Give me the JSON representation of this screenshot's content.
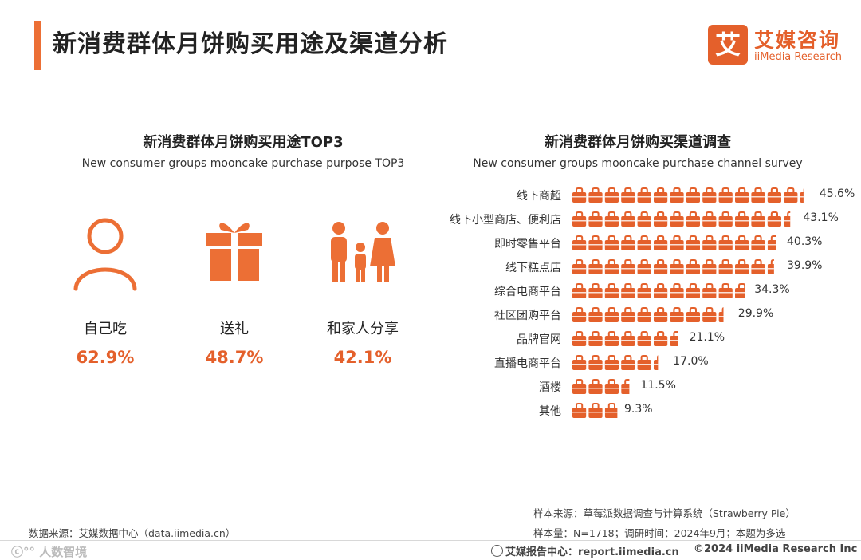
{
  "page": {
    "title": "新消费群体月饼购买用途及渠道分析",
    "accent_color": "#e4602b"
  },
  "logo": {
    "mark": "艾",
    "cn": "艾媒咨询",
    "en": "iiMedia Research"
  },
  "left_section": {
    "title_cn": "新消费群体月饼购买用途TOP3",
    "title_en": "New consumer groups mooncake purchase purpose TOP3",
    "items": [
      {
        "label": "自己吃",
        "value": "62.9%",
        "icon": "person-icon"
      },
      {
        "label": "送礼",
        "value": "48.7%",
        "icon": "gift-icon"
      },
      {
        "label": "和家人分享",
        "value": "42.1%",
        "icon": "family-icon"
      }
    ]
  },
  "right_section": {
    "title_cn": "新消费群体月饼购买渠道调查",
    "title_en": "New consumer groups mooncake purchase channel survey"
  },
  "chart_data": {
    "type": "bar",
    "orientation": "horizontal",
    "mark": "shopping-bag-icons",
    "title": "新消费群体月饼购买渠道调查",
    "subtitle": "New consumer groups mooncake purchase channel survey",
    "unit": "%",
    "categories": [
      "线下商超",
      "线下小型商店、便利店",
      "即时零售平台",
      "线下糕点店",
      "综合电商平台",
      "社区团购平台",
      "品牌官网",
      "直播电商平台",
      "酒楼",
      "其他"
    ],
    "values": [
      45.6,
      43.1,
      40.3,
      39.9,
      34.3,
      29.9,
      21.1,
      17.0,
      11.5,
      9.3
    ],
    "value_labels": [
      "45.6%",
      "43.1%",
      "40.3%",
      "39.9%",
      "34.3%",
      "29.9%",
      "21.1%",
      "17.0%",
      "11.5%",
      "9.3%"
    ]
  },
  "notes": {
    "source": "数据来源：艾媒数据中心（data.iimedia.cn）",
    "sample_source": "样本来源：草莓派数据调查与计算系统（Strawberry Pie）",
    "sample_size": "样本量：N=1718；调研时间：2024年9月；本题为多选"
  },
  "footer": {
    "watermark": "人数智境",
    "report_center": "艾媒报告中心：report.iimedia.cn",
    "copyright": "©2024  iiMedia Research  Inc"
  }
}
